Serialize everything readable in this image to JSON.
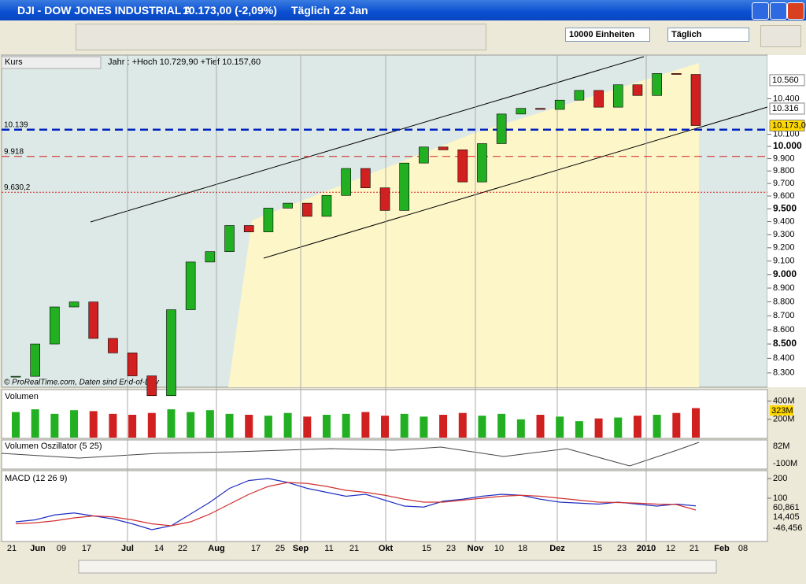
{
  "window": {
    "symbol": "DJI - DOW JONES INDUSTRIAL A",
    "quote": "10.173,00 (-2,09%)",
    "period": "Täglich",
    "date": "22 Jan"
  },
  "toolbar": {
    "units": "10000 Einheiten",
    "interval": "Täglich"
  },
  "price": {
    "title": "Kurs",
    "info": "Jahr : +Hoch 10.729,90 +Tief 10.157,60",
    "copyright": "© ProRealTime.com, Daten sind End-of-Day",
    "log_scale": true,
    "ylim": [
      8203,
      10780
    ],
    "yticks": [
      {
        "value": 8300,
        "label": "8.300"
      },
      {
        "value": 8400,
        "label": "8.400"
      },
      {
        "value": 8500,
        "label": "8.500"
      },
      {
        "value": 8600,
        "label": "8.600"
      },
      {
        "value": 8700,
        "label": "8.700"
      },
      {
        "value": 8800,
        "label": "8.800"
      },
      {
        "value": 8900,
        "label": "8.900"
      },
      {
        "value": 9000,
        "label": "9.000"
      },
      {
        "value": 9100,
        "label": "9.100"
      },
      {
        "value": 9200,
        "label": "9.200"
      },
      {
        "value": 9300,
        "label": "9.300"
      },
      {
        "value": 9400,
        "label": "9.400"
      },
      {
        "value": 9500,
        "label": "9.500"
      },
      {
        "value": 9600,
        "label": "9.600"
      },
      {
        "value": 9700,
        "label": "9.700"
      },
      {
        "value": 9800,
        "label": "9.800"
      },
      {
        "value": 9900,
        "label": "9.900"
      },
      {
        "value": 10000,
        "label": "10.000"
      },
      {
        "value": 10100,
        "label": "10.100"
      },
      {
        "value": 10400,
        "label": "10.400"
      }
    ],
    "levels": [
      {
        "value": 10139,
        "label": "10.139",
        "color": "#0020c0"
      },
      {
        "value": 9918,
        "label": "9.918",
        "color": "#d02020"
      },
      {
        "value": 9630.2,
        "label": "9.630,2",
        "color": "#d02020"
      }
    ],
    "markers": [
      {
        "value": 10560,
        "label": "10.560"
      },
      {
        "value": 10316,
        "label": "10.316"
      },
      {
        "value": 10173,
        "label": "10.173,0"
      }
    ],
    "closes": [
      8277,
      8500,
      8763,
      8799,
      8539,
      8438,
      8280,
      8146,
      8743,
      9093,
      9171,
      9370,
      9321,
      9505,
      9544,
      9441,
      9605,
      9820,
      9665,
      9487,
      9864,
      9995,
      9972,
      9712,
      10023,
      10270,
      10318,
      10309,
      10388,
      10471,
      10328,
      10520,
      10428,
      10618,
      10610,
      10173
    ]
  },
  "volume": {
    "title": "Volumen",
    "ylim": [
      0,
      500
    ],
    "yticks": [
      {
        "value": 200,
        "label": "200M"
      },
      {
        "value": 400,
        "label": "400M"
      }
    ],
    "last": "323M",
    "values": [
      280,
      310,
      260,
      300,
      290,
      260,
      250,
      270,
      310,
      280,
      300,
      260,
      250,
      240,
      270,
      230,
      250,
      260,
      280,
      240,
      260,
      230,
      250,
      270,
      240,
      260,
      200,
      250,
      230,
      180,
      210,
      220,
      240,
      250,
      270,
      323
    ]
  },
  "oscillator": {
    "title": "Volumen Oszillator (5 25)",
    "labels": [
      "82M",
      "-100M"
    ]
  },
  "macd": {
    "title": "MACD (12 26 9)",
    "ylim": [
      -120,
      232
    ],
    "yticks": [
      100,
      200
    ],
    "readouts": [
      "60,861",
      "14,405",
      "-46,456"
    ],
    "macd": [
      -20,
      -10,
      15,
      25,
      10,
      -5,
      -30,
      -60,
      -40,
      20,
      80,
      150,
      190,
      200,
      180,
      150,
      130,
      110,
      120,
      90,
      60,
      55,
      85,
      95,
      110,
      120,
      115,
      95,
      80,
      75,
      70,
      80,
      70,
      60,
      70,
      61
    ],
    "signal": [
      -30,
      -25,
      -15,
      0,
      10,
      5,
      -10,
      -30,
      -40,
      -20,
      20,
      70,
      120,
      160,
      180,
      175,
      160,
      140,
      130,
      115,
      95,
      80,
      80,
      90,
      100,
      110,
      115,
      110,
      100,
      90,
      80,
      78,
      75,
      70,
      68,
      40
    ]
  },
  "xaxis": [
    "21",
    "Jun",
    "09",
    "17",
    "Jul",
    "14",
    "22",
    "Aug",
    "17",
    "25",
    "Sep",
    "11",
    "21",
    "Okt",
    "15",
    "23",
    "Nov",
    "10",
    "18",
    "Dez",
    "15",
    "23",
    "2010",
    "12",
    "21",
    "Feb",
    "08"
  ]
}
